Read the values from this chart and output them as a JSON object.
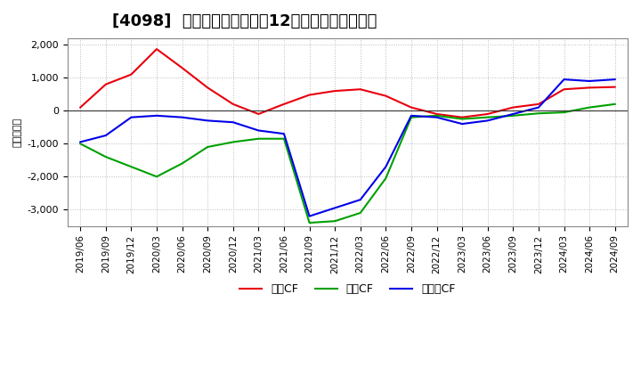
{
  "title": "[4098]  キャッシュフローの12か月移動合計の推移",
  "ylabel": "（百万円）",
  "x_labels": [
    "2019/06",
    "2019/09",
    "2019/12",
    "2020/03",
    "2020/06",
    "2020/09",
    "2020/12",
    "2021/03",
    "2021/06",
    "2021/09",
    "2021/12",
    "2022/03",
    "2022/06",
    "2022/09",
    "2022/12",
    "2023/03",
    "2023/06",
    "2023/09",
    "2023/12",
    "2024/03",
    "2024/06",
    "2024/09"
  ],
  "operating_cf": [
    100,
    800,
    1100,
    1870,
    1300,
    700,
    200,
    -100,
    200,
    480,
    600,
    650,
    450,
    100,
    -100,
    -200,
    -100,
    100,
    200,
    650,
    700,
    720
  ],
  "investing_cf": [
    -1000,
    -1400,
    -1700,
    -2000,
    -1600,
    -1100,
    -950,
    -850,
    -850,
    -3400,
    -3350,
    -3100,
    -2050,
    -200,
    -150,
    -250,
    -200,
    -150,
    -80,
    -50,
    100,
    200
  ],
  "free_cf": [
    -950,
    -750,
    -200,
    -150,
    -200,
    -300,
    -350,
    -600,
    -700,
    -3200,
    -2950,
    -2700,
    -1700,
    -150,
    -200,
    -400,
    -300,
    -100,
    100,
    950,
    900,
    950
  ],
  "operating_color": "#e8000d",
  "investing_color": "#00a000",
  "free_color": "#0000e8",
  "ylim": [
    -3500,
    2200
  ],
  "yticks": [
    -3000,
    -2000,
    -1000,
    0,
    1000,
    2000
  ],
  "background_color": "#ffffff",
  "grid_color": "#bbbbbb",
  "title_fontsize": 13,
  "legend_labels": [
    "営業CF",
    "投資CF",
    "フリーCF"
  ]
}
